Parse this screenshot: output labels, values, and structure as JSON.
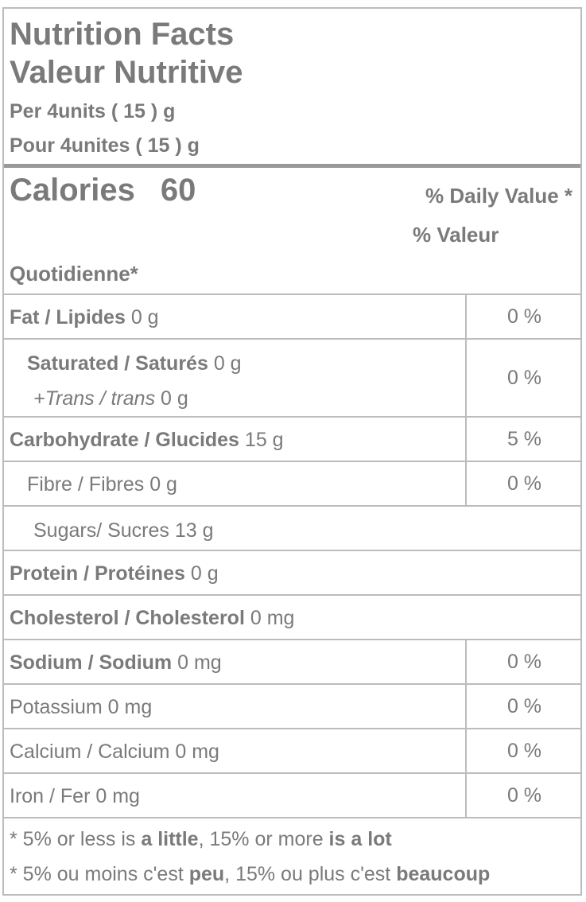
{
  "header": {
    "title_en": "Nutrition Facts",
    "title_fr": "Valeur Nutritive",
    "serving_en": "Per 4units ( 15 ) g",
    "serving_fr": "Pour 4unites ( 15 ) g"
  },
  "calories": {
    "label": "Calories",
    "value": "60"
  },
  "daily_value": {
    "line1": "% Daily Value *",
    "line2": "% Valeur",
    "line3": "Quotidienne*"
  },
  "rows": {
    "fat": {
      "label": "Fat / Lipides",
      "amount": "0 g",
      "pct": "0 %"
    },
    "saturated": {
      "label": "Saturated / Saturés",
      "amount": "0 g",
      "pct": "0 %"
    },
    "trans": {
      "label": "+Trans / trans",
      "amount": "0 g"
    },
    "carb": {
      "label": "Carbohydrate / Glucides",
      "amount": "15 g",
      "pct": "5 %"
    },
    "fibre": {
      "label": "Fibre / Fibres 0 g",
      "pct": "0 %"
    },
    "sugars": {
      "label": "Sugars/ Sucres 13 g"
    },
    "protein": {
      "label": "Protein / Protéines",
      "amount": "0 g"
    },
    "cholesterol": {
      "label": "Cholesterol / Cholesterol",
      "amount": "0 mg"
    },
    "sodium": {
      "label": "Sodium / Sodium",
      "amount": "0 mg",
      "pct": "0 %"
    },
    "potassium": {
      "label": "Potassium 0 mg",
      "pct": "0 %"
    },
    "calcium": {
      "label": "Calcium / Calcium 0 mg",
      "pct": "0 %"
    },
    "iron": {
      "label": "Iron / Fer 0 mg",
      "pct": "0 %"
    }
  },
  "footnote": {
    "en_a": "* 5% or less is ",
    "en_b": "a little",
    "en_c": ", 15% or more ",
    "en_d": "is a lot",
    "fr_a": "* 5% ou moins c'est ",
    "fr_b": "peu",
    "fr_c": ", 15% ou plus c'est ",
    "fr_d": "beaucoup"
  },
  "colors": {
    "text": "#7a7a7a",
    "border": "#bcbcbc",
    "thick_rule": "#999999"
  }
}
